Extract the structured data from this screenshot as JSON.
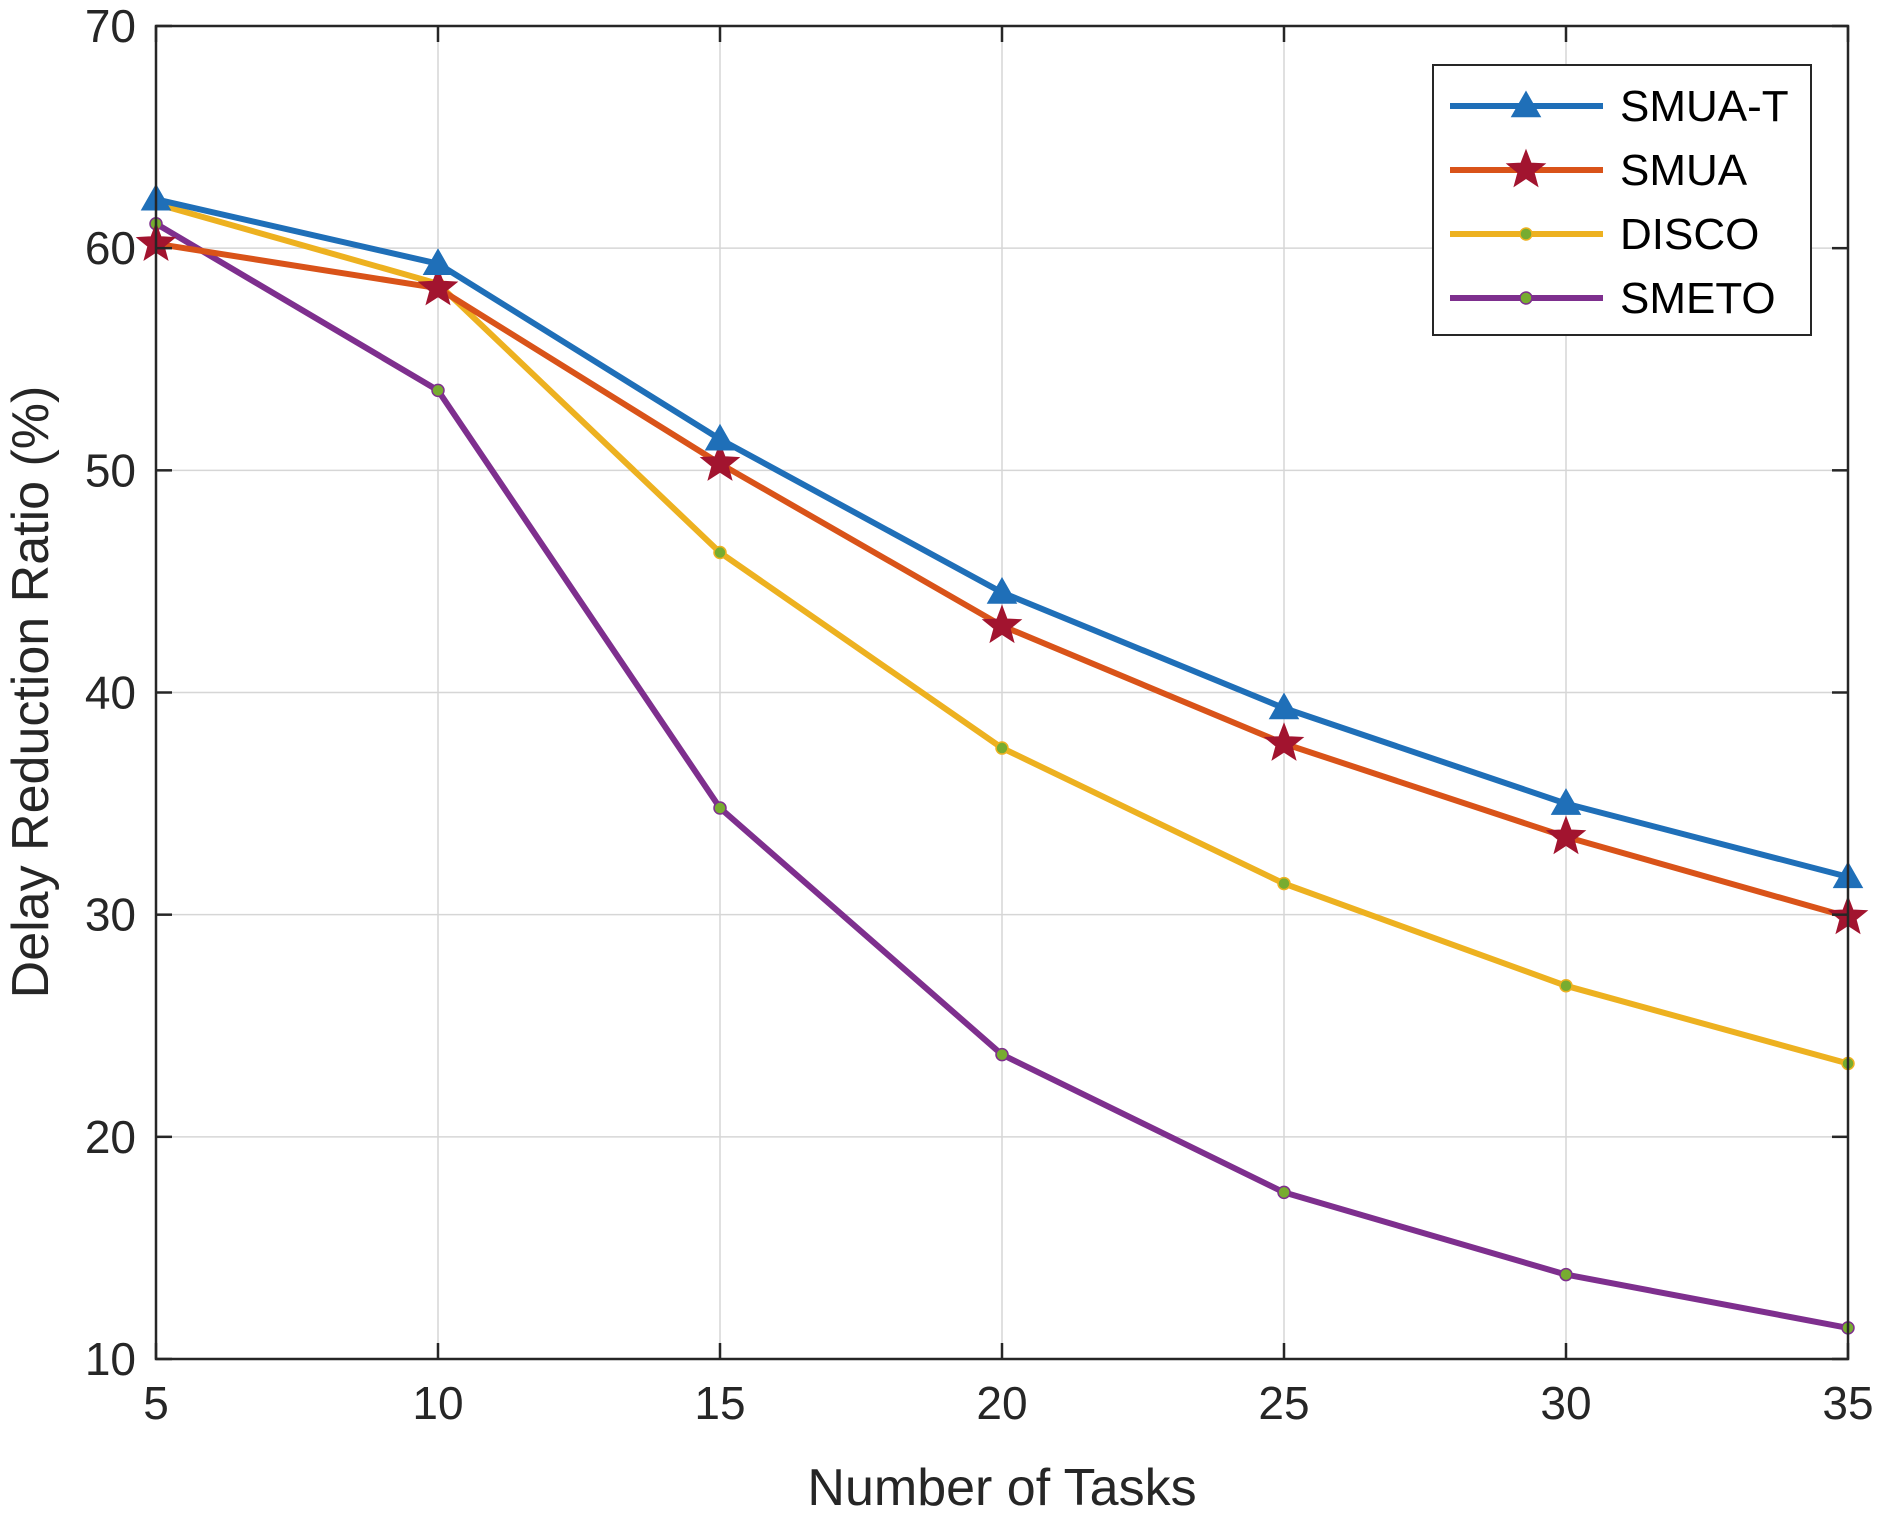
{
  "chart_data": {
    "type": "line",
    "title": "",
    "xlabel": "Number of Tasks",
    "ylabel": "Delay Reduction Ratio (%)",
    "x": [
      5,
      10,
      15,
      20,
      25,
      30,
      35
    ],
    "xlim": [
      5,
      35
    ],
    "ylim": [
      10,
      70
    ],
    "xticks": [
      "5",
      "10",
      "15",
      "20",
      "25",
      "30",
      "35"
    ],
    "yticks": [
      "10",
      "20",
      "30",
      "40",
      "50",
      "60",
      "70"
    ],
    "grid": true,
    "legend_position": "top-right",
    "series": [
      {
        "name": "SMUA-T",
        "color": "#1f6fb8",
        "marker": "triangle",
        "values": [
          62.2,
          59.3,
          51.4,
          44.5,
          39.3,
          35.0,
          31.7
        ]
      },
      {
        "name": "SMUA",
        "color": "#d95319",
        "marker": "star",
        "values": [
          60.2,
          58.2,
          50.3,
          43.0,
          37.7,
          33.5,
          29.9
        ]
      },
      {
        "name": "DISCO",
        "color": "#edb120",
        "marker": "dot",
        "values": [
          62.0,
          58.4,
          46.3,
          37.5,
          31.4,
          26.8,
          23.3
        ]
      },
      {
        "name": "SMETO",
        "color": "#7e2f8e",
        "marker": "dot",
        "values": [
          61.1,
          53.6,
          34.8,
          23.7,
          17.5,
          13.8,
          11.4
        ]
      }
    ]
  }
}
